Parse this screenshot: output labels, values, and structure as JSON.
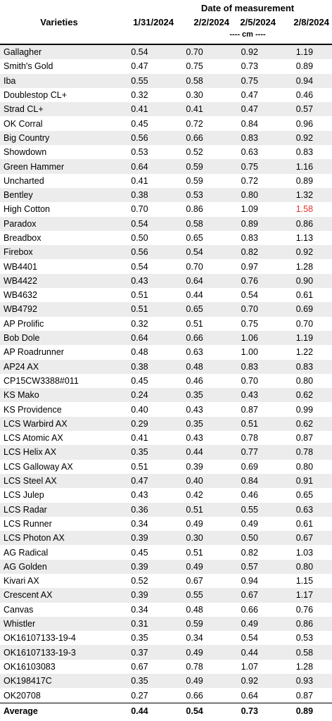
{
  "header": {
    "date_title": "Date of measurement",
    "varieties_label": "Varieties",
    "dates": [
      "1/31/2024",
      "2/2/2024",
      "2/5/2024",
      "2/8/2024"
    ],
    "unit": "---- cm ----"
  },
  "highlight_color": "#e8322d",
  "shade_color": "#ececec",
  "rows": [
    {
      "name": "Gallagher",
      "values": [
        "0.54",
        "0.70",
        "0.92",
        "1.19"
      ]
    },
    {
      "name": "Smith's Gold",
      "values": [
        "0.47",
        "0.75",
        "0.73",
        "0.89"
      ]
    },
    {
      "name": "Iba",
      "values": [
        "0.55",
        "0.58",
        "0.75",
        "0.94"
      ]
    },
    {
      "name": "Doublestop CL+",
      "values": [
        "0.32",
        "0.30",
        "0.47",
        "0.46"
      ]
    },
    {
      "name": "Strad CL+",
      "values": [
        "0.41",
        "0.41",
        "0.47",
        "0.57"
      ]
    },
    {
      "name": "OK Corral",
      "values": [
        "0.45",
        "0.72",
        "0.84",
        "0.96"
      ]
    },
    {
      "name": "Big Country",
      "values": [
        "0.56",
        "0.66",
        "0.83",
        "0.92"
      ]
    },
    {
      "name": "Showdown",
      "values": [
        "0.53",
        "0.52",
        "0.63",
        "0.83"
      ]
    },
    {
      "name": "Green Hammer",
      "values": [
        "0.64",
        "0.59",
        "0.75",
        "1.16"
      ]
    },
    {
      "name": "Uncharted",
      "values": [
        "0.41",
        "0.59",
        "0.72",
        "0.89"
      ]
    },
    {
      "name": "Bentley",
      "values": [
        "0.38",
        "0.53",
        "0.80",
        "1.32"
      ]
    },
    {
      "name": "High Cotton",
      "values": [
        "0.70",
        "0.86",
        "1.09",
        "1.58"
      ],
      "highlight": 3
    },
    {
      "name": "Paradox",
      "values": [
        "0.54",
        "0.58",
        "0.89",
        "0.86"
      ]
    },
    {
      "name": "Breadbox",
      "values": [
        "0.50",
        "0.65",
        "0.83",
        "1.13"
      ]
    },
    {
      "name": "Firebox",
      "values": [
        "0.56",
        "0.54",
        "0.82",
        "0.92"
      ]
    },
    {
      "name": "WB4401",
      "values": [
        "0.54",
        "0.70",
        "0.97",
        "1.28"
      ]
    },
    {
      "name": "WB4422",
      "values": [
        "0.43",
        "0.64",
        "0.76",
        "0.90"
      ]
    },
    {
      "name": "WB4632",
      "values": [
        "0.51",
        "0.44",
        "0.54",
        "0.61"
      ]
    },
    {
      "name": "WB4792",
      "values": [
        "0.51",
        "0.65",
        "0.70",
        "0.69"
      ]
    },
    {
      "name": "AP Prolific",
      "values": [
        "0.32",
        "0.51",
        "0.75",
        "0.70"
      ]
    },
    {
      "name": "Bob Dole",
      "values": [
        "0.64",
        "0.66",
        "1.06",
        "1.19"
      ]
    },
    {
      "name": "AP Roadrunner",
      "values": [
        "0.48",
        "0.63",
        "1.00",
        "1.22"
      ]
    },
    {
      "name": "AP24 AX",
      "values": [
        "0.38",
        "0.48",
        "0.83",
        "0.83"
      ]
    },
    {
      "name": "CP15CW3388#011",
      "values": [
        "0.45",
        "0.46",
        "0.70",
        "0.80"
      ]
    },
    {
      "name": "KS Mako",
      "values": [
        "0.24",
        "0.35",
        "0.43",
        "0.62"
      ]
    },
    {
      "name": "KS Providence",
      "values": [
        "0.40",
        "0.43",
        "0.87",
        "0.99"
      ]
    },
    {
      "name": "LCS Warbird AX",
      "values": [
        "0.29",
        "0.35",
        "0.51",
        "0.62"
      ]
    },
    {
      "name": "LCS Atomic AX",
      "values": [
        "0.41",
        "0.43",
        "0.78",
        "0.87"
      ]
    },
    {
      "name": "LCS Helix AX",
      "values": [
        "0.35",
        "0.44",
        "0.77",
        "0.78"
      ]
    },
    {
      "name": "LCS Galloway AX",
      "values": [
        "0.51",
        "0.39",
        "0.69",
        "0.80"
      ]
    },
    {
      "name": "LCS Steel AX",
      "values": [
        "0.47",
        "0.40",
        "0.84",
        "0.91"
      ]
    },
    {
      "name": "LCS Julep",
      "values": [
        "0.43",
        "0.42",
        "0.46",
        "0.65"
      ]
    },
    {
      "name": "LCS Radar",
      "values": [
        "0.36",
        "0.51",
        "0.55",
        "0.63"
      ]
    },
    {
      "name": "LCS Runner",
      "values": [
        "0.34",
        "0.49",
        "0.49",
        "0.61"
      ]
    },
    {
      "name": "LCS Photon AX",
      "values": [
        "0.39",
        "0.30",
        "0.50",
        "0.67"
      ]
    },
    {
      "name": "AG Radical",
      "values": [
        "0.45",
        "0.51",
        "0.82",
        "1.03"
      ]
    },
    {
      "name": "AG Golden",
      "values": [
        "0.39",
        "0.49",
        "0.57",
        "0.80"
      ]
    },
    {
      "name": "Kivari AX",
      "values": [
        "0.52",
        "0.67",
        "0.94",
        "1.15"
      ]
    },
    {
      "name": "Crescent AX",
      "values": [
        "0.39",
        "0.55",
        "0.67",
        "1.17"
      ]
    },
    {
      "name": "Canvas",
      "values": [
        "0.34",
        "0.48",
        "0.66",
        "0.76"
      ]
    },
    {
      "name": "Whistler",
      "values": [
        "0.31",
        "0.59",
        "0.49",
        "0.86"
      ]
    },
    {
      "name": "OK16107133-19-4",
      "values": [
        "0.35",
        "0.34",
        "0.54",
        "0.53"
      ]
    },
    {
      "name": "OK16107133-19-3",
      "values": [
        "0.37",
        "0.49",
        "0.44",
        "0.58"
      ]
    },
    {
      "name": "OK16103083",
      "values": [
        "0.67",
        "0.78",
        "1.07",
        "1.28"
      ]
    },
    {
      "name": "OK198417C",
      "values": [
        "0.35",
        "0.49",
        "0.92",
        "0.93"
      ]
    },
    {
      "name": "OK20708",
      "values": [
        "0.27",
        "0.66",
        "0.64",
        "0.87"
      ]
    }
  ],
  "average": {
    "name": "Average",
    "values": [
      "0.44",
      "0.54",
      "0.73",
      "0.89"
    ]
  }
}
